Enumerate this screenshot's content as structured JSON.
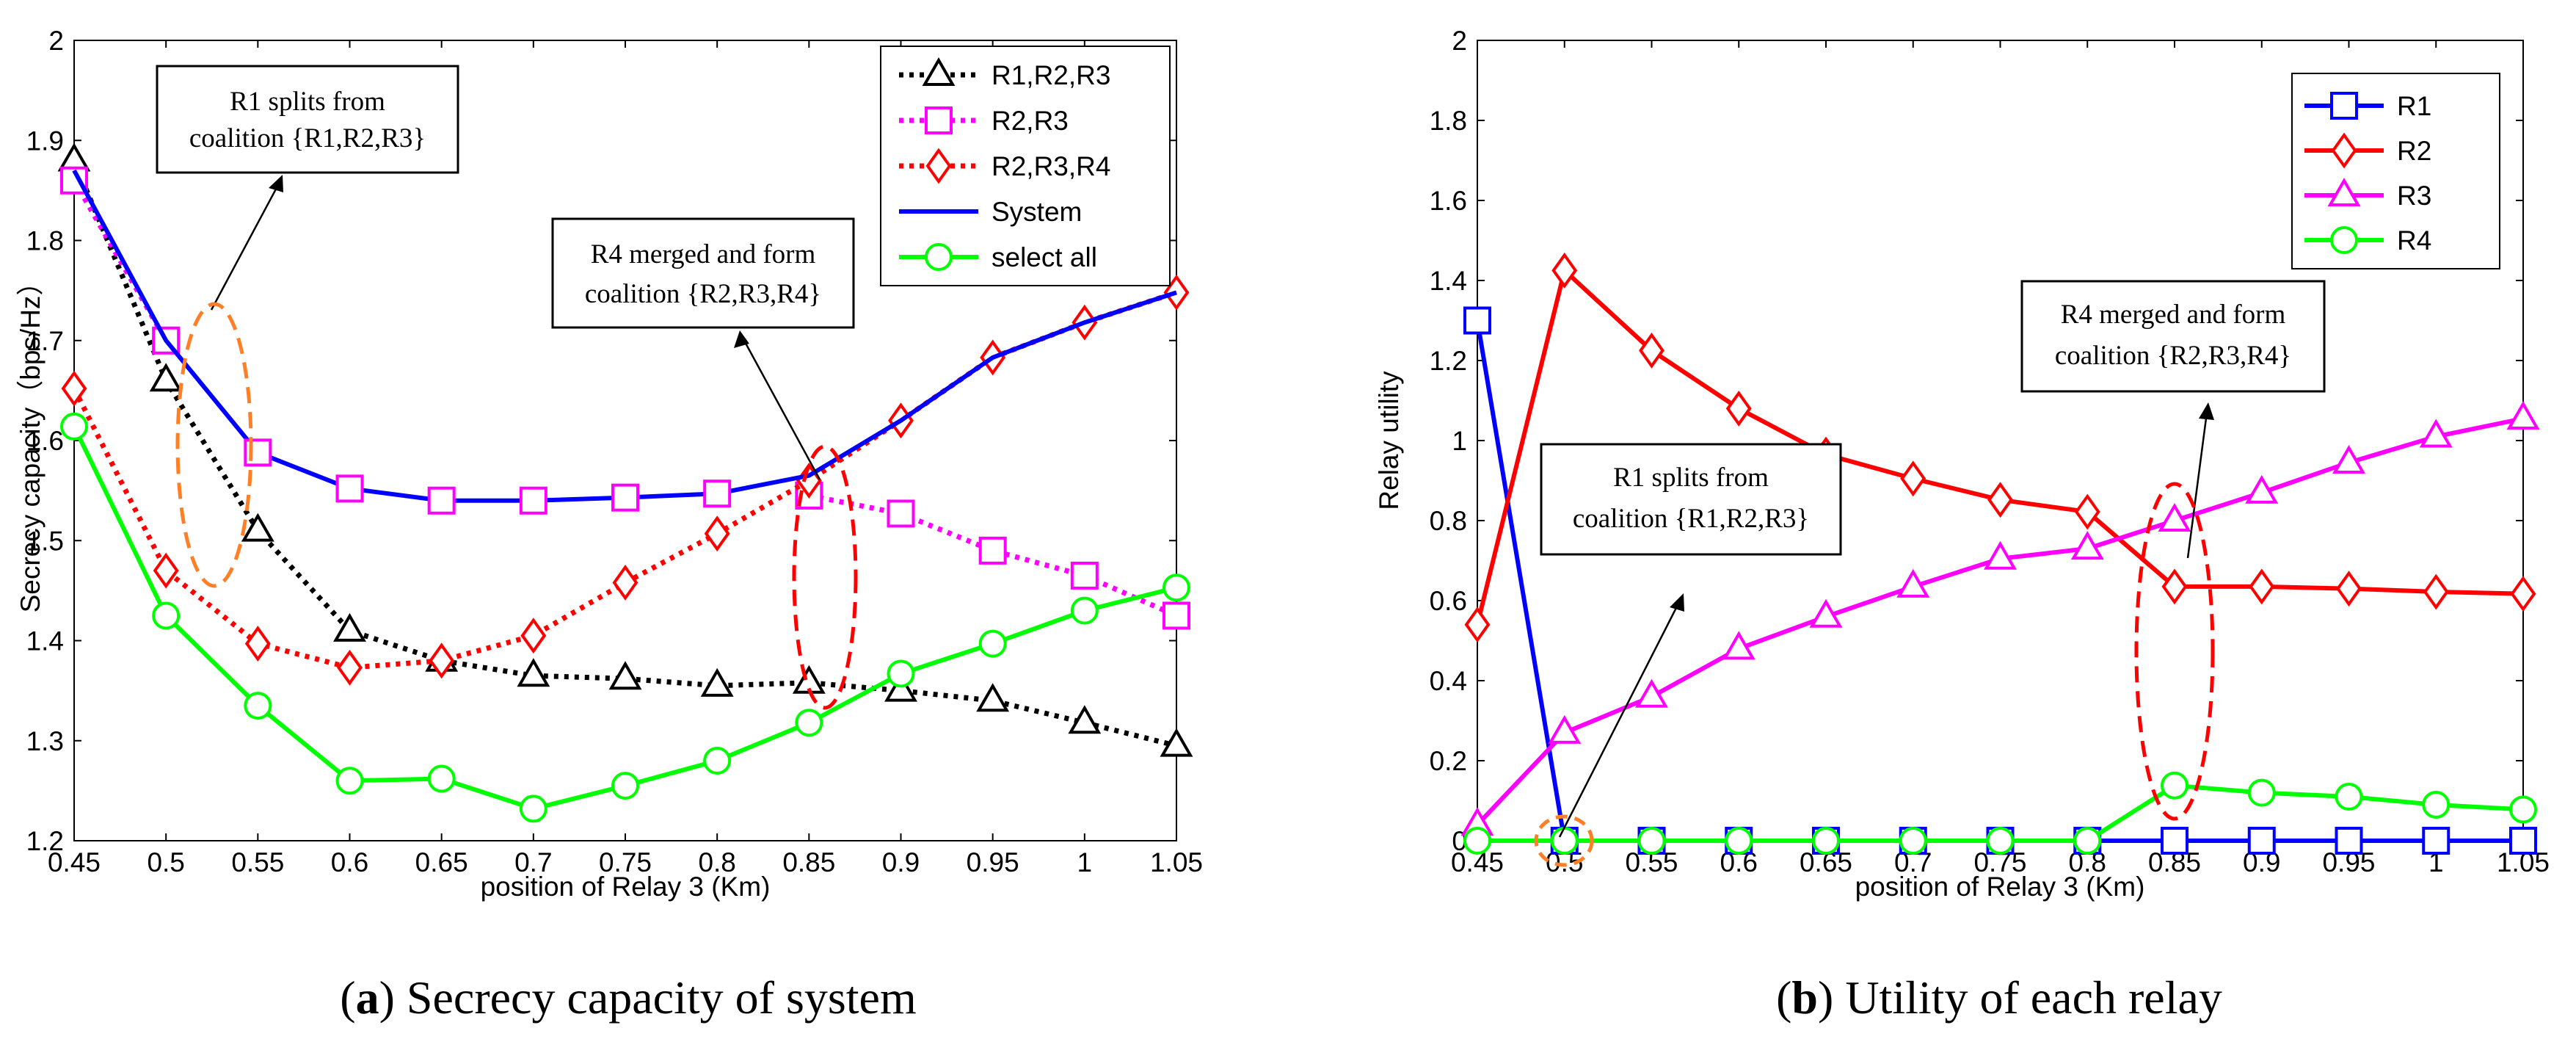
{
  "chart_data": [
    {
      "type": "line",
      "caption_letter": "a",
      "caption_text": "Secrecy capacity of system",
      "xlabel": "position of Relay 3 (Km)",
      "ylabel": "Secrecy capacity（bps/Hz）",
      "xlim": [
        0.45,
        1.05
      ],
      "ylim": [
        1.2,
        2.0
      ],
      "x_ticks": [
        "0.45",
        "0.5",
        "0.55",
        "0.6",
        "0.65",
        "0.7",
        "0.75",
        "0.8",
        "0.85",
        "0.9",
        "0.95",
        "1",
        "1.05"
      ],
      "y_ticks": [
        "1.2",
        "1.3",
        "1.4",
        "1.5",
        "1.6",
        "1.7",
        "1.8",
        "1.9",
        "2"
      ],
      "x": [
        0.45,
        0.5,
        0.55,
        0.6,
        0.65,
        0.7,
        0.75,
        0.8,
        0.85,
        0.9,
        0.95,
        1.0,
        1.05
      ],
      "series": [
        {
          "name": "R1,R2,R3",
          "color": "#000000",
          "dash": "dotted",
          "marker": "triangle",
          "values": [
            1.88,
            1.66,
            1.51,
            1.41,
            1.38,
            1.365,
            1.362,
            1.355,
            1.358,
            1.35,
            1.34,
            1.318,
            1.295
          ]
        },
        {
          "name": "R2,R3",
          "color": "#ff00ff",
          "dash": "dotted",
          "marker": "square",
          "values": [
            1.86,
            1.7,
            null,
            null,
            null,
            null,
            null,
            null,
            1.545,
            1.527,
            1.49,
            1.465,
            1.425
          ]
        },
        {
          "name": "R2,R3,R4",
          "color": "#ff0000",
          "dash": "dotted",
          "marker": "diamond",
          "values": [
            1.652,
            1.47,
            1.397,
            1.373,
            1.38,
            1.405,
            1.458,
            1.507,
            1.56,
            1.62,
            1.683,
            1.718,
            1.748
          ]
        },
        {
          "name": "System",
          "color": "#0000ff",
          "dash": "solid",
          "marker": "none",
          "values": [
            1.87,
            1.7,
            1.588,
            1.552,
            1.54,
            1.54,
            1.543,
            1.547,
            1.565,
            1.62,
            1.683,
            1.718,
            1.748
          ]
        },
        {
          "name": "select all",
          "color": "#00ff00",
          "dash": "solid",
          "marker": "circle",
          "values": [
            1.614,
            1.425,
            1.335,
            1.26,
            1.262,
            1.232,
            1.255,
            1.28,
            1.318,
            1.367,
            1.397,
            1.43,
            1.453
          ]
        }
      ],
      "system_square_points": [
        {
          "x": 0.6,
          "y": 1.552
        },
        {
          "x": 0.65,
          "y": 1.54
        },
        {
          "x": 0.7,
          "y": 1.54
        },
        {
          "x": 0.75,
          "y": 1.543
        },
        {
          "x": 0.8,
          "y": 1.547
        },
        {
          "x": 0.55,
          "y": 1.588
        }
      ],
      "annotations": [
        {
          "lines": [
            "R1 splits from",
            "coalition {R1,R2,R3}"
          ]
        },
        {
          "lines": [
            "R4 merged and form",
            "coalition {R2,R3,R4}"
          ]
        }
      ],
      "legend_position": "top-right"
    },
    {
      "type": "line",
      "caption_letter": "b",
      "caption_text": "Utility of each relay",
      "xlabel": "position of Relay 3 (Km)",
      "ylabel": "Relay utility",
      "xlim": [
        0.45,
        1.05
      ],
      "ylim": [
        0,
        2.0
      ],
      "x_ticks": [
        "0.45",
        "0.5",
        "0.55",
        "0.6",
        "0.65",
        "0.7",
        "0.75",
        "0.8",
        "0.85",
        "0.9",
        "0.95",
        "1",
        "1.05"
      ],
      "y_ticks": [
        "0",
        "0.2",
        "0.4",
        "0.6",
        "0.8",
        "1",
        "1.2",
        "1.4",
        "1.6",
        "1.8",
        "2"
      ],
      "x": [
        0.45,
        0.5,
        0.55,
        0.6,
        0.65,
        0.7,
        0.75,
        0.8,
        0.85,
        0.9,
        0.95,
        1.0,
        1.05
      ],
      "series": [
        {
          "name": "R1",
          "color": "#0000ff",
          "dash": "solid",
          "marker": "square",
          "values": [
            1.3,
            0,
            0,
            0,
            0,
            0,
            0,
            0,
            0,
            0,
            0,
            0,
            0
          ]
        },
        {
          "name": "R2",
          "color": "#ff0000",
          "dash": "solid",
          "marker": "diamond",
          "values": [
            0.54,
            1.425,
            1.225,
            1.08,
            0.965,
            0.905,
            0.852,
            0.822,
            0.635,
            0.635,
            0.63,
            0.622,
            0.617
          ]
        },
        {
          "name": "R3",
          "color": "#ff00ff",
          "dash": "solid",
          "marker": "triangle",
          "values": [
            0.04,
            0.27,
            0.36,
            0.48,
            0.56,
            0.635,
            0.705,
            0.73,
            0.8,
            0.87,
            0.945,
            1.01,
            1.055
          ]
        },
        {
          "name": "R4",
          "color": "#00ff00",
          "dash": "solid",
          "marker": "circle",
          "values": [
            0,
            0,
            0,
            0,
            0,
            0,
            0,
            0,
            0.138,
            0.12,
            0.11,
            0.09,
            0.078
          ]
        }
      ],
      "annotations": [
        {
          "lines": [
            "R1 splits from",
            "coalition {R1,R2,R3}"
          ]
        },
        {
          "lines": [
            "R4 merged and form",
            "coalition {R2,R3,R4}"
          ]
        }
      ],
      "legend_position": "top-right"
    }
  ]
}
